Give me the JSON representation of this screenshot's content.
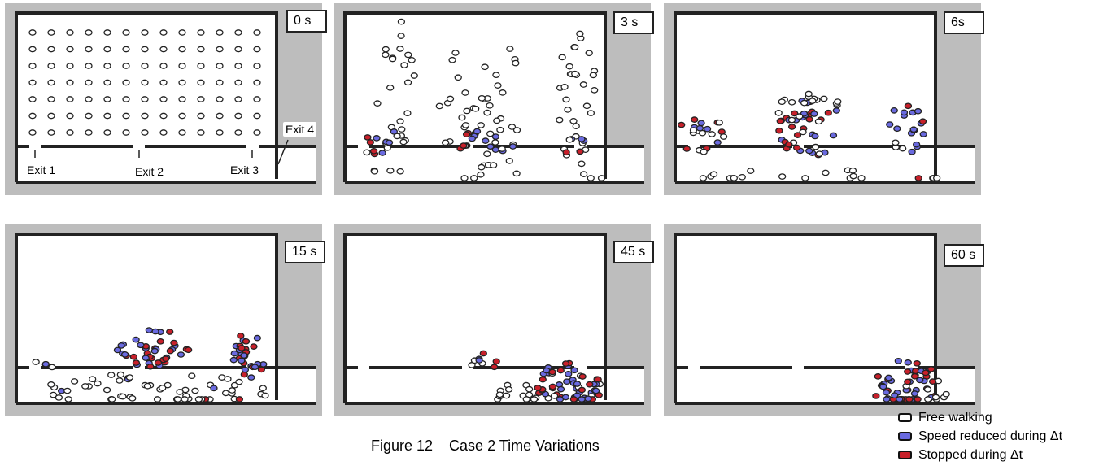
{
  "figure": {
    "caption": "Figure 12    Case 2 Time Variations",
    "exit_labels": [
      "Exit 1",
      "Exit 2",
      "Exit 3",
      "Exit 4"
    ]
  },
  "panels": [
    {
      "time": "0 s",
      "grid": true,
      "agents": []
    },
    {
      "time": "3 s",
      "agents": [
        {
          "cx": 70,
          "cy": 370,
          "rx": 30,
          "ry": 88,
          "n": 22,
          "free": 1.0
        },
        {
          "cx": 45,
          "cy": 440,
          "rx": 35,
          "ry": 18,
          "n": 12,
          "free": 0.4
        },
        {
          "cx": 185,
          "cy": 390,
          "rx": 60,
          "ry": 95,
          "n": 40,
          "free": 1.0
        },
        {
          "cx": 185,
          "cy": 440,
          "rx": 45,
          "ry": 16,
          "n": 18,
          "free": 0.2
        },
        {
          "cx": 310,
          "cy": 380,
          "rx": 25,
          "ry": 95,
          "n": 30,
          "free": 1.0
        },
        {
          "cx": 310,
          "cy": 445,
          "rx": 22,
          "ry": 12,
          "n": 6,
          "free": 0.3
        },
        {
          "cx": 60,
          "cy": 475,
          "rx": 30,
          "ry": 12,
          "n": 4,
          "free": 1.0
        },
        {
          "cx": 190,
          "cy": 480,
          "rx": 40,
          "ry": 12,
          "n": 6,
          "free": 1.0
        },
        {
          "cx": 330,
          "cy": 490,
          "rx": 15,
          "ry": 18,
          "n": 3,
          "free": 1.0
        }
      ]
    },
    {
      "time": "6s",
      "agents": [
        {
          "cx": 35,
          "cy": 430,
          "rx": 30,
          "ry": 28,
          "n": 20,
          "free": 0.3
        },
        {
          "cx": 180,
          "cy": 420,
          "rx": 45,
          "ry": 40,
          "n": 45,
          "free": 0.2
        },
        {
          "cx": 180,
          "cy": 395,
          "rx": 45,
          "ry": 18,
          "n": 12,
          "free": 1.0
        },
        {
          "cx": 310,
          "cy": 420,
          "rx": 25,
          "ry": 35,
          "n": 20,
          "free": 0.3
        },
        {
          "cx": 100,
          "cy": 485,
          "rx": 90,
          "ry": 12,
          "n": 10,
          "free": 1.0
        },
        {
          "cx": 230,
          "cy": 485,
          "rx": 40,
          "ry": 12,
          "n": 6,
          "free": 1.0
        },
        {
          "cx": 345,
          "cy": 490,
          "rx": 25,
          "ry": 12,
          "n": 4,
          "free": 0.8
        }
      ]
    },
    {
      "time": "15 s",
      "agents": [
        {
          "cx": 185,
          "cy": 420,
          "rx": 50,
          "ry": 25,
          "n": 40,
          "free": 0.05
        },
        {
          "cx": 310,
          "cy": 430,
          "rx": 22,
          "ry": 30,
          "n": 30,
          "free": 0.05
        },
        {
          "cx": 40,
          "cy": 440,
          "rx": 15,
          "ry": 12,
          "n": 4,
          "free": 0.5
        },
        {
          "cx": 180,
          "cy": 475,
          "rx": 160,
          "ry": 22,
          "n": 60,
          "free": 0.9
        }
      ]
    },
    {
      "time": "45 s",
      "agents": [
        {
          "cx": 185,
          "cy": 440,
          "rx": 20,
          "ry": 15,
          "n": 8,
          "free": 0.3
        },
        {
          "cx": 300,
          "cy": 470,
          "rx": 45,
          "ry": 35,
          "n": 60,
          "free": 0.15
        },
        {
          "cx": 240,
          "cy": 480,
          "rx": 55,
          "ry": 15,
          "n": 20,
          "free": 0.9
        }
      ]
    },
    {
      "time": "60 s",
      "agents": [
        {
          "cx": 310,
          "cy": 470,
          "rx": 45,
          "ry": 35,
          "n": 60,
          "free": 0.1
        },
        {
          "cx": 350,
          "cy": 485,
          "rx": 15,
          "ry": 12,
          "n": 5,
          "free": 1.0
        }
      ]
    }
  ],
  "legend": [
    {
      "label": "Free walking",
      "color": "#ffffff"
    },
    {
      "label": "Speed reduced during Δt",
      "color": "#6a6ae0"
    },
    {
      "label": "Stopped during Δt",
      "color": "#c8202a"
    }
  ]
}
